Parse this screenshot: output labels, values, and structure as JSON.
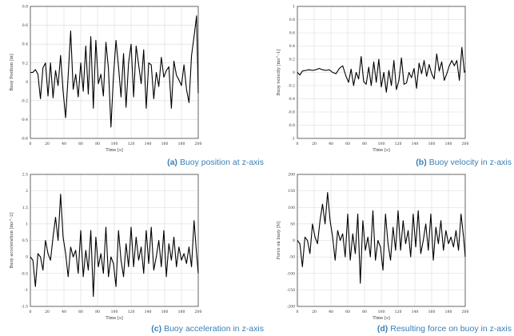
{
  "chart_data": [
    {
      "type": "line",
      "id": "a",
      "caption_tag": "(a)",
      "caption_text": "Buoy position at z-axis",
      "xlabel": "Time [s]",
      "ylabel": "Buoy Position [m]",
      "xlim": [
        0,
        200
      ],
      "ylim": [
        -0.6,
        0.8
      ],
      "xticks": [
        0,
        20,
        40,
        60,
        80,
        100,
        120,
        140,
        160,
        180,
        200
      ],
      "yticks": [
        -0.6,
        -0.4,
        -0.2,
        0,
        0.2,
        0.4,
        0.6,
        0.8
      ],
      "yticklabels": [
        "-0.6",
        "-0.4",
        "-0.2",
        "0",
        "0.2",
        "0.4",
        "0.6",
        "0.8"
      ],
      "grid": true,
      "series": [
        {
          "x": [
            0,
            3,
            6,
            9,
            12,
            15,
            18,
            21,
            24,
            27,
            30,
            33,
            36,
            39,
            42,
            45,
            48,
            51,
            54,
            57,
            60,
            63,
            66,
            69,
            72,
            75,
            78,
            81,
            84,
            87,
            90,
            93,
            96,
            99,
            102,
            105,
            108,
            111,
            114,
            117,
            120,
            123,
            126,
            129,
            132,
            135,
            138,
            141,
            144,
            147,
            150,
            153,
            156,
            159,
            162,
            165,
            168,
            171,
            174,
            177,
            180,
            183,
            186,
            189,
            192,
            195,
            198,
            200
          ],
          "y": [
            0.1,
            0.1,
            0.13,
            0.08,
            -0.18,
            0.15,
            0.2,
            -0.15,
            0.2,
            -0.17,
            0.12,
            -0.04,
            0.28,
            -0.1,
            -0.38,
            0.06,
            0.54,
            -0.08,
            0.08,
            -0.16,
            0.2,
            -0.1,
            0.38,
            -0.13,
            0.48,
            -0.28,
            0.44,
            -0.02,
            0.08,
            -0.15,
            0.42,
            0.14,
            -0.48,
            0.06,
            0.44,
            0.16,
            -0.16,
            0.3,
            -0.27,
            0.2,
            0.4,
            -0.16,
            0.38,
            0.18,
            -0.02,
            0.34,
            -0.28,
            0.2,
            0.18,
            -0.18,
            0.1,
            -0.05,
            0.26,
            0.05,
            0.12,
            0.16,
            -0.28,
            0.22,
            0.07,
            0.02,
            -0.04,
            0.18,
            -0.08,
            -0.22,
            0.28,
            0.48,
            0.7,
            -0.12
          ]
        }
      ]
    },
    {
      "type": "line",
      "id": "b",
      "caption_tag": "(b)",
      "caption_text": "Buoy velocity in z-axis",
      "xlabel": "Time [s]",
      "ylabel": "Buoy velocity [ms^-1]",
      "xlim": [
        0,
        200
      ],
      "ylim": [
        -1,
        1
      ],
      "xticks": [
        0,
        20,
        40,
        60,
        80,
        100,
        120,
        140,
        160,
        180,
        200
      ],
      "yticks": [
        -1,
        -0.8,
        -0.6,
        -0.4,
        -0.2,
        0,
        0.2,
        0.4,
        0.6,
        0.8,
        1
      ],
      "yticklabels": [
        "-1",
        "-0.8",
        "-0.6",
        "-0.4",
        "-0.2",
        "0",
        "0.2",
        "0.4",
        "0.6",
        "0.8",
        "1"
      ],
      "grid": true,
      "series": [
        {
          "x": [
            0,
            3,
            6,
            10,
            14,
            18,
            22,
            26,
            30,
            34,
            38,
            42,
            46,
            50,
            54,
            58,
            61,
            64,
            67,
            70,
            73,
            76,
            79,
            82,
            85,
            88,
            91,
            94,
            97,
            100,
            103,
            106,
            109,
            112,
            115,
            118,
            121,
            124,
            127,
            130,
            133,
            136,
            139,
            142,
            145,
            148,
            151,
            154,
            157,
            160,
            163,
            166,
            169,
            172,
            175,
            178,
            181,
            184,
            187,
            190,
            193,
            196,
            199,
            200
          ],
          "y": [
            0,
            -0.04,
            0.02,
            0.03,
            0.04,
            0.03,
            0.04,
            0.06,
            0.04,
            0.03,
            0.04,
            0.0,
            -0.02,
            0.06,
            0.1,
            -0.06,
            -0.15,
            0.05,
            -0.2,
            0.0,
            -0.1,
            0.24,
            -0.14,
            -0.18,
            0.08,
            -0.2,
            0.16,
            -0.15,
            0.2,
            -0.22,
            0.0,
            -0.3,
            0.03,
            -0.2,
            0.18,
            -0.26,
            -0.12,
            0.22,
            -0.18,
            -0.16,
            0.0,
            -0.08,
            0.06,
            -0.24,
            0.14,
            -0.02,
            0.18,
            -0.06,
            0.12,
            -0.02,
            -0.1,
            0.28,
            0.02,
            0.16,
            -0.12,
            -0.02,
            0.1,
            0.18,
            0.1,
            0.18,
            -0.12,
            0.38,
            0.0,
            0.02
          ]
        }
      ]
    },
    {
      "type": "line",
      "id": "c",
      "caption_tag": "(c)",
      "caption_text": "Buoy acceleration in z-axis",
      "xlabel": "Time [s]",
      "ylabel": "Buoy acceleration [ms^-2]",
      "xlim": [
        0,
        200
      ],
      "ylim": [
        -1.5,
        2.5
      ],
      "xticks": [
        0,
        20,
        40,
        60,
        80,
        100,
        120,
        140,
        160,
        180,
        200
      ],
      "yticks": [
        -1.5,
        -1,
        -0.5,
        0,
        0.5,
        1,
        1.5,
        2,
        2.5
      ],
      "yticklabels": [
        "-1.5",
        "-1",
        "-0.5",
        "0",
        "0.5",
        "1",
        "1.5",
        "2",
        "2.5"
      ],
      "grid": true,
      "series": [
        {
          "x": [
            0,
            3,
            6,
            9,
            12,
            15,
            18,
            21,
            24,
            27,
            30,
            33,
            36,
            39,
            42,
            45,
            48,
            51,
            54,
            57,
            60,
            63,
            66,
            69,
            72,
            75,
            78,
            81,
            84,
            87,
            90,
            93,
            96,
            99,
            102,
            105,
            108,
            111,
            114,
            117,
            120,
            123,
            126,
            129,
            132,
            135,
            138,
            141,
            144,
            147,
            150,
            153,
            156,
            159,
            162,
            165,
            168,
            171,
            174,
            177,
            180,
            183,
            186,
            189,
            192,
            195,
            198,
            200
          ],
          "y": [
            0,
            -0.1,
            -0.9,
            0.1,
            0.0,
            -0.4,
            0.5,
            0.1,
            -0.1,
            0.6,
            1.2,
            0.5,
            1.9,
            0.6,
            0.1,
            -0.6,
            0.3,
            0.0,
            0.2,
            -0.5,
            0.8,
            -0.6,
            0.2,
            -0.4,
            0.8,
            -1.2,
            0.6,
            -0.3,
            0.1,
            -0.5,
            0.9,
            -0.6,
            0.0,
            -0.2,
            -0.9,
            0.8,
            -0.1,
            -0.6,
            0.4,
            -0.3,
            0.9,
            -0.3,
            0.6,
            -0.1,
            0.3,
            -0.5,
            0.8,
            -0.2,
            0.9,
            -0.4,
            0.0,
            0.5,
            -0.3,
            0.8,
            -0.6,
            0.4,
            -0.1,
            0.6,
            -0.3,
            0.3,
            -0.1,
            0.1,
            -0.2,
            0.3,
            -0.3,
            1.1,
            0.1,
            -0.5
          ]
        }
      ]
    },
    {
      "type": "line",
      "id": "d",
      "caption_tag": "(d)",
      "caption_text": "Resulting force on buoy in z-axis",
      "xlabel": "Time [s]",
      "ylabel": "Force on buoy [N]",
      "xlim": [
        0,
        200
      ],
      "ylim": [
        -200,
        200
      ],
      "xticks": [
        0,
        20,
        40,
        60,
        80,
        100,
        120,
        140,
        160,
        180,
        200
      ],
      "yticks": [
        -200,
        -150,
        -100,
        -50,
        0,
        50,
        100,
        150,
        200
      ],
      "yticklabels": [
        "-200",
        "-150",
        "-100",
        "-50",
        "0",
        "50",
        "100",
        "150",
        "200"
      ],
      "grid": true,
      "series": [
        {
          "x": [
            0,
            3,
            6,
            9,
            12,
            15,
            18,
            21,
            24,
            27,
            30,
            33,
            36,
            39,
            42,
            45,
            48,
            51,
            54,
            57,
            60,
            63,
            66,
            69,
            72,
            75,
            78,
            81,
            84,
            87,
            90,
            93,
            96,
            99,
            102,
            105,
            108,
            111,
            114,
            117,
            120,
            123,
            126,
            129,
            132,
            135,
            138,
            141,
            144,
            147,
            150,
            153,
            156,
            159,
            162,
            165,
            168,
            171,
            174,
            177,
            180,
            183,
            186,
            189,
            192,
            195,
            198,
            200
          ],
          "y": [
            0,
            -10,
            -80,
            10,
            0,
            -40,
            50,
            10,
            -10,
            60,
            110,
            50,
            145,
            60,
            10,
            -60,
            30,
            0,
            20,
            -50,
            80,
            -60,
            20,
            -40,
            80,
            -130,
            60,
            -30,
            10,
            -50,
            90,
            -60,
            0,
            -20,
            -90,
            80,
            -10,
            -60,
            40,
            -30,
            90,
            -30,
            60,
            -10,
            30,
            -50,
            80,
            -20,
            90,
            -40,
            0,
            50,
            -30,
            80,
            -60,
            40,
            -10,
            60,
            -30,
            30,
            -10,
            10,
            -20,
            30,
            -30,
            80,
            10,
            -50
          ]
        }
      ]
    }
  ]
}
